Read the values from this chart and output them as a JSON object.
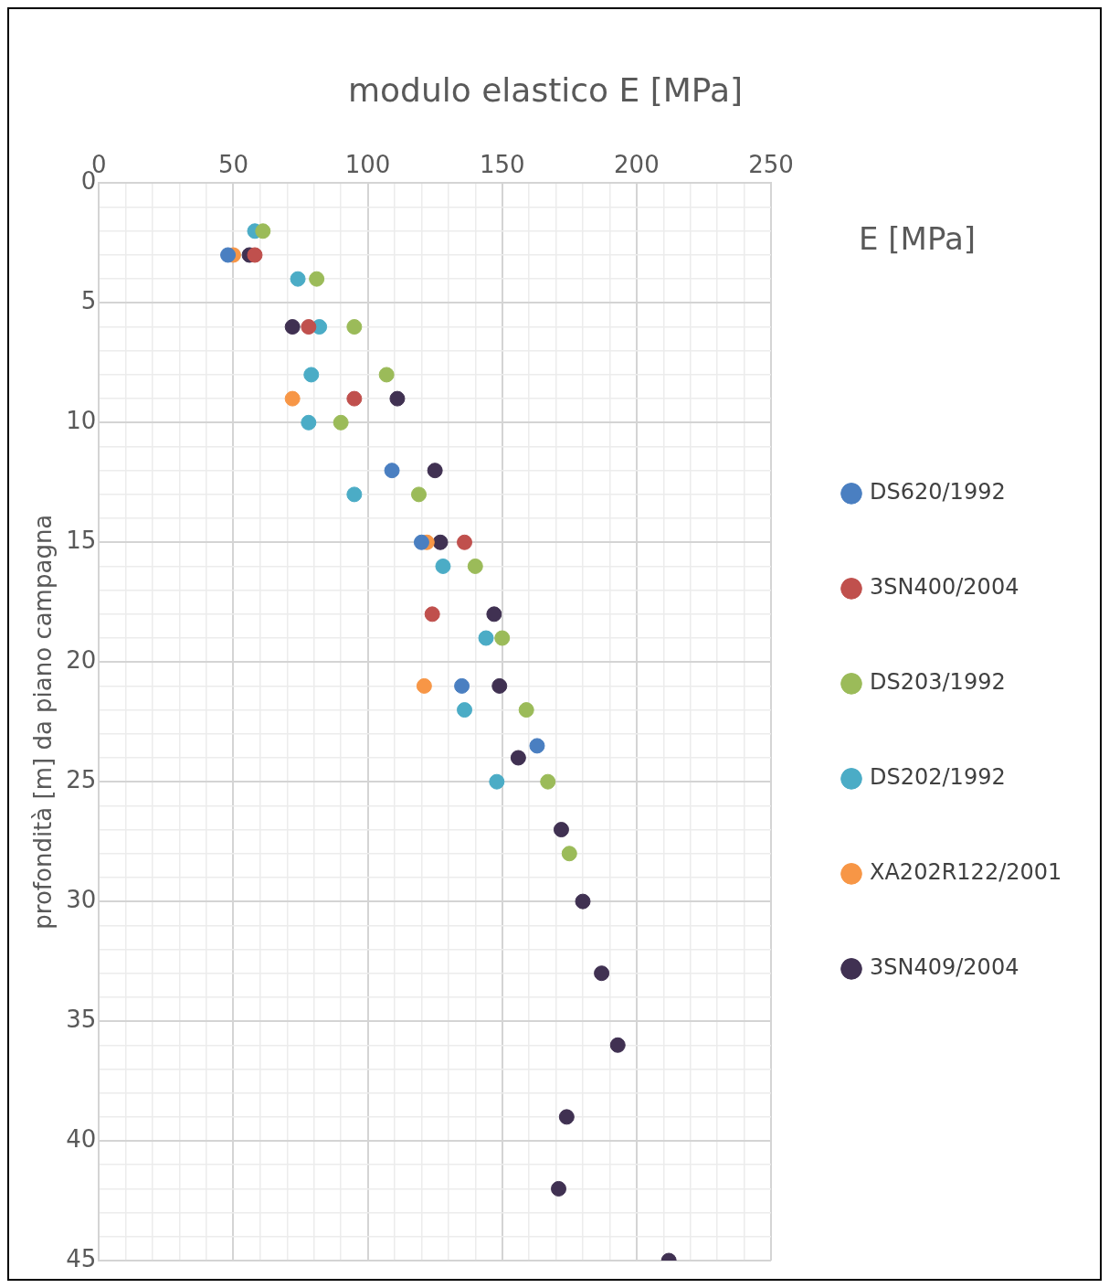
{
  "chart_data": {
    "type": "scatter",
    "title": "modulo elastico E [MPa]",
    "ylabel": "profondità [m] da piano campagna",
    "legend_title": "E [MPa]",
    "legend": "right",
    "marker": "circle",
    "grid": true,
    "xlim": [
      0,
      250
    ],
    "xticks": [
      0,
      {
        "value": 10,
        "label": null
      },
      {
        "value": 20,
        "label": null
      },
      {
        "value": 30,
        "label": null
      },
      {
        "value": 40,
        "label": null
      },
      50,
      {
        "value": 60,
        "label": null
      },
      {
        "value": 70,
        "label": null
      },
      {
        "value": 80,
        "label": null
      },
      {
        "value": 90,
        "label": null
      },
      100,
      {
        "value": 110,
        "label": null
      },
      {
        "value": 120,
        "label": null
      },
      {
        "value": 130,
        "label": null
      },
      {
        "value": 140,
        "label": null
      },
      150,
      {
        "value": 160,
        "label": null
      },
      {
        "value": 170,
        "label": null
      },
      {
        "value": 180,
        "label": null
      },
      {
        "value": 190,
        "label": null
      },
      200,
      {
        "value": 210,
        "label": null
      },
      {
        "value": 220,
        "label": null
      },
      {
        "value": 230,
        "label": null
      },
      {
        "value": 240,
        "label": null
      },
      250
    ],
    "ylim": [
      45,
      0
    ],
    "yticks": [
      0,
      {
        "value": 1,
        "label": null
      },
      {
        "value": 2,
        "label": null
      },
      {
        "value": 3,
        "label": null
      },
      {
        "value": 4,
        "label": null
      },
      5,
      {
        "value": 6,
        "label": null
      },
      {
        "value": 7,
        "label": null
      },
      {
        "value": 8,
        "label": null
      },
      {
        "value": 9,
        "label": null
      },
      10,
      {
        "value": 11,
        "label": null
      },
      {
        "value": 12,
        "label": null
      },
      {
        "value": 13,
        "label": null
      },
      {
        "value": 14,
        "label": null
      },
      15,
      {
        "value": 16,
        "label": null
      },
      {
        "value": 17,
        "label": null
      },
      {
        "value": 18,
        "label": null
      },
      {
        "value": 19,
        "label": null
      },
      20,
      {
        "value": 21,
        "label": null
      },
      {
        "value": 22,
        "label": null
      },
      {
        "value": 23,
        "label": null
      },
      {
        "value": 24,
        "label": null
      },
      25,
      {
        "value": 26,
        "label": null
      },
      {
        "value": 27,
        "label": null
      },
      {
        "value": 28,
        "label": null
      },
      {
        "value": 29,
        "label": null
      },
      30,
      {
        "value": 31,
        "label": null
      },
      {
        "value": 32,
        "label": null
      },
      {
        "value": 33,
        "label": null
      },
      {
        "value": 34,
        "label": null
      },
      35,
      {
        "value": 36,
        "label": null
      },
      {
        "value": 37,
        "label": null
      },
      {
        "value": 38,
        "label": null
      },
      {
        "value": 39,
        "label": null
      },
      40,
      {
        "value": 41,
        "label": null
      },
      {
        "value": 42,
        "label": null
      },
      {
        "value": 43,
        "label": null
      },
      {
        "value": 44,
        "label": null
      },
      45
    ],
    "series": [
      {
        "name": "DS620/1992",
        "color": "#4a7fc1",
        "x": [
          48,
          109,
          120,
          135,
          163
        ],
        "values": [
          3,
          12,
          15,
          21,
          23.5
        ]
      },
      {
        "name": "3SN400/2004",
        "color": "#c0504d",
        "x": [
          58,
          78,
          95,
          136,
          124
        ],
        "values": [
          3,
          6,
          9,
          15,
          18
        ]
      },
      {
        "name": "DS203/1992",
        "color": "#9bbb59",
        "x": [
          61,
          81,
          95,
          107,
          90,
          119,
          140,
          150,
          159,
          167,
          175
        ],
        "values": [
          2,
          4,
          6,
          8,
          10,
          13,
          16,
          19,
          22,
          25,
          28
        ]
      },
      {
        "name": "DS202/1992",
        "color": "#4bacc6",
        "x": [
          58,
          74,
          82,
          79,
          78,
          95,
          128,
          144,
          136,
          148
        ],
        "values": [
          2,
          4,
          6,
          8,
          10,
          13,
          16,
          19,
          22,
          25
        ]
      },
      {
        "name": "XA202R122/2001",
        "color": "#f79646",
        "x": [
          50,
          72,
          122,
          121
        ],
        "values": [
          3,
          9,
          15,
          21
        ]
      },
      {
        "name": "3SN409/2004",
        "color": "#403152",
        "x": [
          56,
          72,
          111,
          125,
          127,
          147,
          149,
          156,
          172,
          180,
          187,
          193,
          174,
          171,
          212
        ],
        "values": [
          3,
          6,
          9,
          12,
          15,
          18,
          21,
          24,
          27,
          30,
          33,
          36,
          39,
          42,
          45
        ]
      }
    ]
  }
}
